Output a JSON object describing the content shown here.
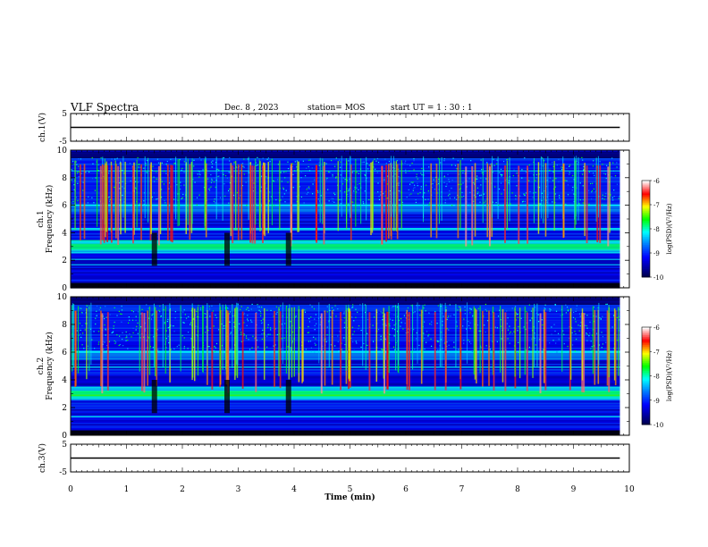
{
  "header": {
    "title": "VLF Spectra",
    "date": "Dec. 8 , 2023",
    "station": "station= MOS",
    "start": "start UT =   1 : 30 : 1"
  },
  "chart_data": {
    "type": "heatmap",
    "xlabel": "Time (min)",
    "xlim": [
      0,
      10
    ],
    "xticks": [
      "0",
      "1",
      "2",
      "3",
      "4",
      "5",
      "6",
      "7",
      "8",
      "9",
      "10"
    ],
    "panels": [
      {
        "id": "ch1-waveform",
        "ylabel": "ch.1(V)",
        "ylim": [
          -5,
          5
        ],
        "yticks": [
          "5",
          "-5"
        ],
        "trace_value": 0
      },
      {
        "id": "ch1-spectrogram",
        "ylabel": "ch.1 Frequency (kHz)",
        "ylim": [
          0,
          10
        ],
        "yticks": [
          "0",
          "2",
          "4",
          "6",
          "8",
          "10"
        ],
        "colorbar": {
          "label": "log(PSD)(V²/Hz)",
          "range": [
            -10,
            -6
          ],
          "ticks": [
            "-6",
            "-7",
            "-8",
            "-9",
            "-10"
          ]
        }
      },
      {
        "id": "ch2-spectrogram",
        "ylabel": "ch.2 Frequency (kHz)",
        "ylim": [
          0,
          10
        ],
        "yticks": [
          "0",
          "2",
          "4",
          "6",
          "8",
          "10"
        ],
        "colorbar": {
          "label": "log(PSD)(V²/Hz)",
          "range": [
            -10,
            -6
          ],
          "ticks": [
            "-6",
            "-7",
            "-8",
            "-9",
            "-10"
          ]
        }
      },
      {
        "id": "ch3-waveform",
        "ylabel": "ch.3(V)",
        "ylim": [
          -5,
          5
        ],
        "yticks": [
          "5",
          "-5"
        ],
        "trace_value": 0
      }
    ],
    "data_end_min": 9.83,
    "features": {
      "sferic_band_khz": [
        6,
        10
      ],
      "hiss_band_khz": [
        2.5,
        3.5
      ],
      "gap_times_min": [
        1.5,
        2.8,
        3.9
      ]
    },
    "colormap": [
      "#000010",
      "#00008b",
      "#0000ff",
      "#0078ff",
      "#00ffff",
      "#00ff00",
      "#ffff00",
      "#ff0000",
      "#ffffff"
    ]
  }
}
